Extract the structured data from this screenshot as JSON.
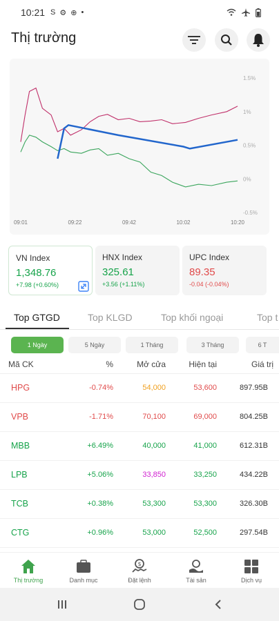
{
  "status_bar": {
    "time": "10:21",
    "left_icons": [
      "S",
      "⚙",
      "⊕",
      "•"
    ]
  },
  "header": {
    "title": "Thị trường"
  },
  "chart_data": {
    "type": "line",
    "x_ticks": [
      "09:01",
      "09:22",
      "09:42",
      "10:02",
      "10:20"
    ],
    "y_ticks": [
      "1.5%",
      "1%",
      "0.5%",
      "0%",
      "-0.5%"
    ],
    "ylim": [
      -0.5,
      1.5
    ],
    "grid": false,
    "series": [
      {
        "color": "#c0306a",
        "x": [
          0,
          2,
          4,
          7,
          10,
          14,
          17,
          20,
          23,
          28,
          32,
          36,
          40,
          45,
          50,
          55,
          60,
          65,
          70,
          76,
          82,
          88,
          95,
          100
        ],
        "y": [
          0.55,
          0.95,
          1.3,
          1.35,
          1.05,
          0.95,
          0.7,
          0.75,
          0.65,
          0.73,
          0.85,
          0.93,
          0.96,
          0.88,
          0.9,
          0.85,
          0.86,
          0.88,
          0.82,
          0.84,
          0.9,
          0.95,
          1.0,
          1.08
        ]
      },
      {
        "color": "#3aa55c",
        "x": [
          0,
          2,
          4,
          7,
          10,
          14,
          17,
          20,
          23,
          28,
          32,
          36,
          40,
          45,
          50,
          55,
          60,
          65,
          70,
          76,
          82,
          88,
          95,
          100
        ],
        "y": [
          0.4,
          0.55,
          0.65,
          0.62,
          0.55,
          0.48,
          0.42,
          0.45,
          0.4,
          0.38,
          0.43,
          0.45,
          0.35,
          0.38,
          0.3,
          0.25,
          0.1,
          0.05,
          -0.05,
          -0.12,
          -0.08,
          -0.1,
          -0.05,
          -0.03
        ]
      },
      {
        "color": "#2266cc",
        "x": [
          17,
          20,
          22,
          45,
          75,
          78,
          100
        ],
        "y": [
          0.3,
          0.75,
          0.8,
          0.65,
          0.48,
          0.45,
          0.58
        ]
      }
    ]
  },
  "indices": [
    {
      "name": "VN Index",
      "value": "1,348.76",
      "change": "+7.98 (+0.60%)",
      "color": "#16a34a"
    },
    {
      "name": "HNX Index",
      "value": "325.61",
      "change": "+3.56 (+1.11%)",
      "color": "#16a34a"
    },
    {
      "name": "UPC Index",
      "value": "89.35",
      "change": "-0.04 (-0.04%)",
      "color": "#e04a4a"
    }
  ],
  "tabs": [
    "Top GTGD",
    "Top KLGD",
    "Top khối ngoại",
    "Top t"
  ],
  "periods": [
    "1 Ngày",
    "5 Ngày",
    "1 Tháng",
    "3 Tháng",
    "6 T"
  ],
  "table": {
    "headers": {
      "symbol": "Mã CK",
      "pct": "%",
      "open": "Mở cửa",
      "current": "Hiện tại",
      "value": "Giá trị"
    },
    "rows": [
      {
        "symbol": "HPG",
        "pct": "-0.74%",
        "open": "54,000",
        "current": "53,600",
        "value": "897.95B",
        "sym_color": "#e04a4a",
        "pct_color": "#e04a4a",
        "open_color": "#f0a020",
        "cur_color": "#e04a4a"
      },
      {
        "symbol": "VPB",
        "pct": "-1.71%",
        "open": "70,100",
        "current": "69,000",
        "value": "804.25B",
        "sym_color": "#e04a4a",
        "pct_color": "#e04a4a",
        "open_color": "#e04a4a",
        "cur_color": "#e04a4a"
      },
      {
        "symbol": "MBB",
        "pct": "+6.49%",
        "open": "40,000",
        "current": "41,000",
        "value": "612.31B",
        "sym_color": "#16a34a",
        "pct_color": "#16a34a",
        "open_color": "#16a34a",
        "cur_color": "#16a34a"
      },
      {
        "symbol": "LPB",
        "pct": "+5.06%",
        "open": "33,850",
        "current": "33,250",
        "value": "434.22B",
        "sym_color": "#16a34a",
        "pct_color": "#16a34a",
        "open_color": "#d020d0",
        "cur_color": "#16a34a"
      },
      {
        "symbol": "TCB",
        "pct": "+0.38%",
        "open": "53,300",
        "current": "53,300",
        "value": "326.30B",
        "sym_color": "#16a34a",
        "pct_color": "#16a34a",
        "open_color": "#16a34a",
        "cur_color": "#16a34a"
      },
      {
        "symbol": "CTG",
        "pct": "+0.96%",
        "open": "53,000",
        "current": "52,500",
        "value": "297.54B",
        "sym_color": "#16a34a",
        "pct_color": "#16a34a",
        "open_color": "#16a34a",
        "cur_color": "#16a34a"
      }
    ]
  },
  "bottom_nav": [
    {
      "label": "Thị trường",
      "icon": "home-icon"
    },
    {
      "label": "Danh mục",
      "icon": "briefcase-icon"
    },
    {
      "label": "Đặt lệnh",
      "icon": "order-icon"
    },
    {
      "label": "Tài sản",
      "icon": "wallet-icon"
    },
    {
      "label": "Dịch vụ",
      "icon": "grid-icon"
    }
  ],
  "colors": {
    "accent": "#3fa34d",
    "up": "#16a34a",
    "down": "#e04a4a",
    "ref": "#f0a020",
    "ceiling": "#d020d0"
  }
}
